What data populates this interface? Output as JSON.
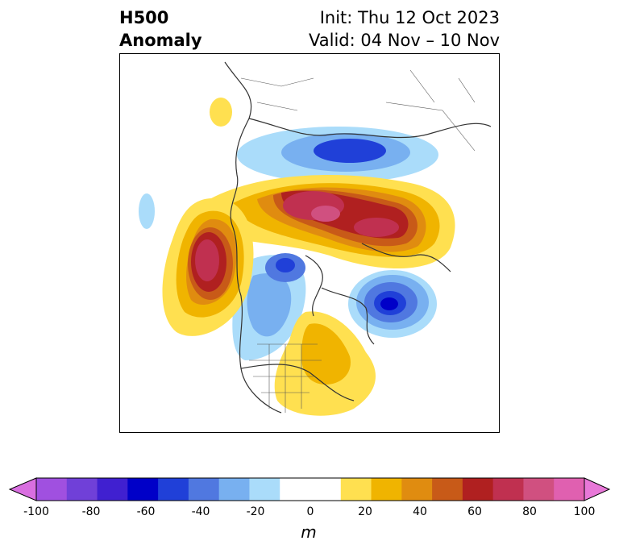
{
  "header": {
    "title_line1": "H500",
    "title_line2": "Anomaly",
    "init": "Init: Thu 12 Oct 2023",
    "valid": "Valid: 04 Nov – 10 Nov"
  },
  "colorbar": {
    "units": "m",
    "tick_labels": [
      "-100",
      "-80",
      "-60",
      "-40",
      "-20",
      "0",
      "20",
      "40",
      "60",
      "80",
      "100"
    ],
    "bins": [
      {
        "color": "#d96fe0"
      },
      {
        "color": "#a050e0"
      },
      {
        "color": "#7040d8"
      },
      {
        "color": "#4020d0"
      },
      {
        "color": "#0000c8"
      },
      {
        "color": "#2040d8"
      },
      {
        "color": "#5078e0"
      },
      {
        "color": "#78b0f0"
      },
      {
        "color": "#aadcfa"
      },
      {
        "color": "#ffffff"
      },
      {
        "color": "#ffffff"
      },
      {
        "color": "#ffe050"
      },
      {
        "color": "#f0b400"
      },
      {
        "color": "#e08c10"
      },
      {
        "color": "#c85a18"
      },
      {
        "color": "#b02020"
      },
      {
        "color": "#c03050"
      },
      {
        "color": "#d05080"
      },
      {
        "color": "#e060b0"
      },
      {
        "color": "#e878d8"
      }
    ],
    "range": [
      -100,
      100
    ]
  },
  "map": {
    "projection": "polar-stereographic",
    "features": [
      "500 hPa height anomaly"
    ]
  }
}
